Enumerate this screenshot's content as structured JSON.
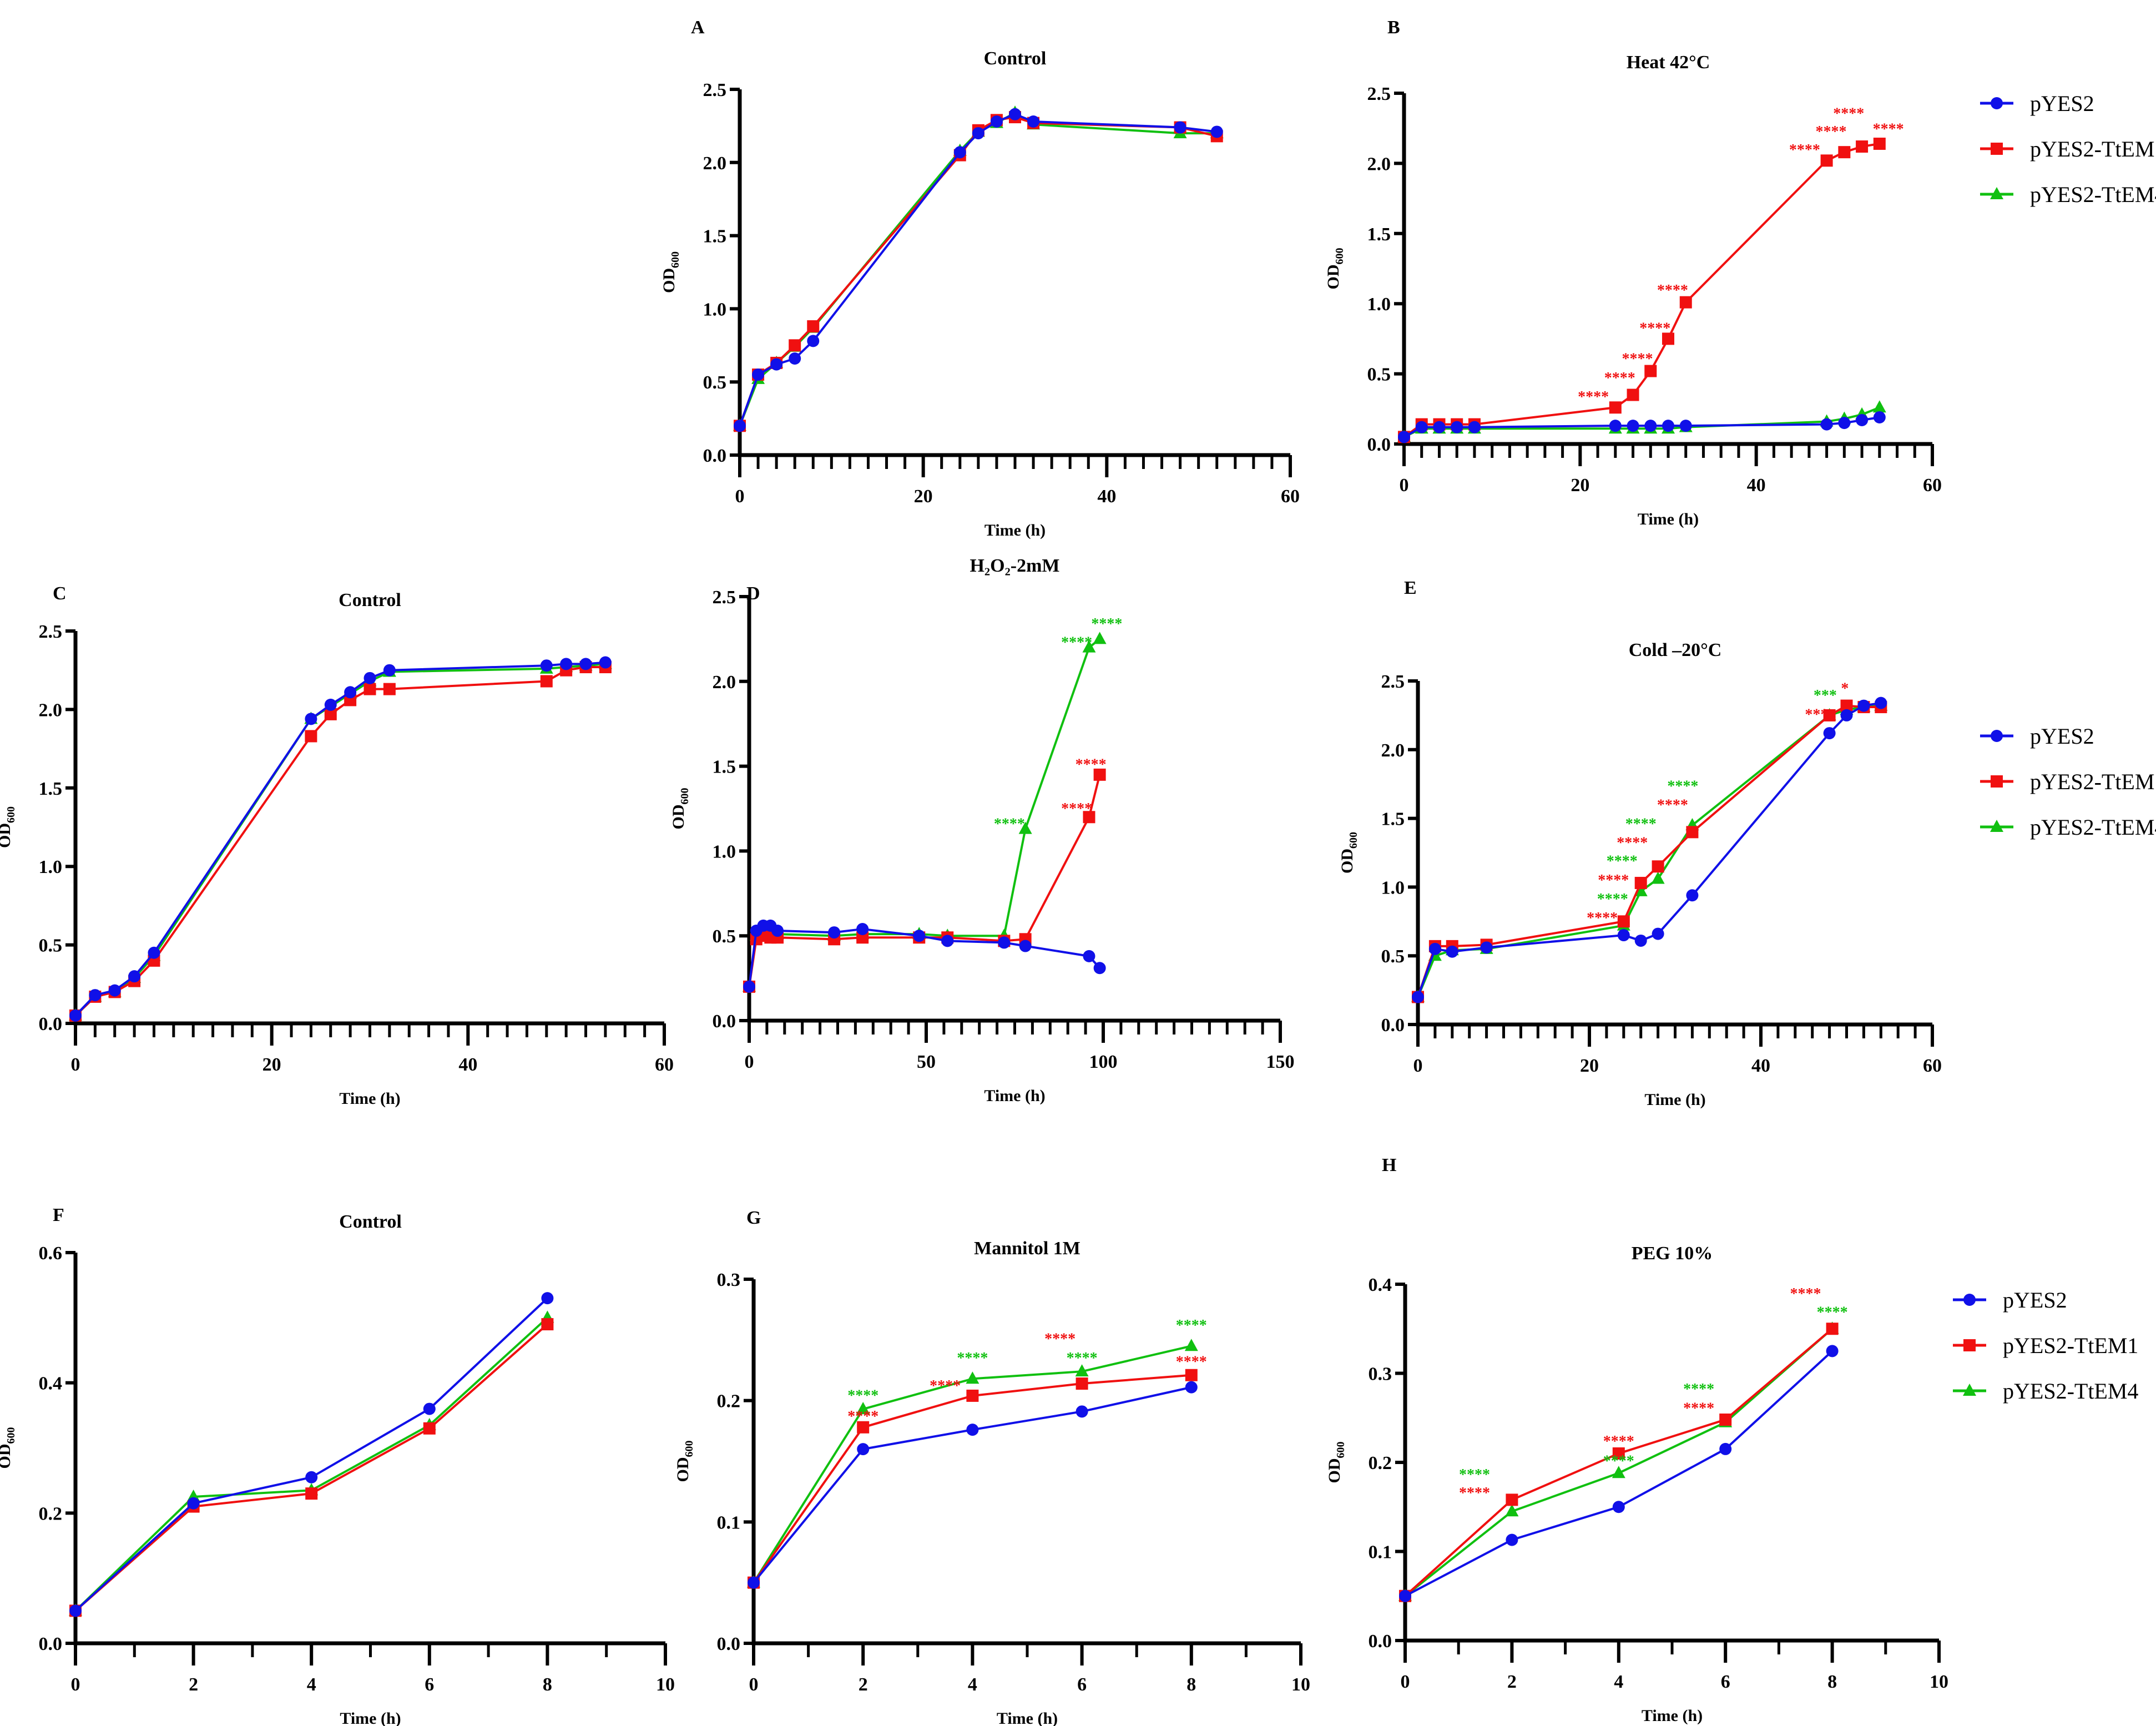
{
  "legend": [
    "pYES2",
    "pYES2-TtEM1",
    "pYES2-TtEM4"
  ],
  "colors": {
    "pYES2": "#1010e8",
    "pYES2-TtEM1": "#f01010",
    "pYES2-TtEM4": "#10c010"
  },
  "chart_data": [
    {
      "panel": "A",
      "type": "line",
      "title": "Control",
      "xlabel": "Time (h)",
      "ylabel": "OD600",
      "xlim": [
        0,
        60
      ],
      "xticks": [
        0,
        20,
        40,
        60
      ],
      "ylim": [
        0,
        2.5
      ],
      "yticks": [
        0,
        0.5,
        1,
        1.5,
        2,
        2.5
      ],
      "x": [
        0,
        2,
        4,
        6,
        8,
        24,
        26,
        28,
        30,
        32,
        48,
        52
      ],
      "series": [
        {
          "name": "pYES2",
          "values": [
            0.2,
            0.55,
            0.62,
            0.66,
            0.78,
            2.07,
            2.2,
            2.28,
            2.33,
            2.28,
            2.24,
            2.21
          ]
        },
        {
          "name": "pYES2-TtEM1",
          "values": [
            0.2,
            0.55,
            0.63,
            0.75,
            0.88,
            2.05,
            2.22,
            2.29,
            2.31,
            2.27,
            2.24,
            2.18
          ]
        },
        {
          "name": "pYES2-TtEM4",
          "values": [
            0.2,
            0.52,
            0.63,
            0.74,
            0.87,
            2.08,
            2.21,
            2.27,
            2.34,
            2.26,
            2.2,
            2.2
          ]
        }
      ],
      "annotations": []
    },
    {
      "panel": "B",
      "type": "line",
      "title": "Heat 42°C",
      "xlabel": "Time (h)",
      "ylabel": "OD600",
      "xlim": [
        0,
        60
      ],
      "xticks": [
        0,
        20,
        40,
        60
      ],
      "ylim": [
        0,
        2.5
      ],
      "yticks": [
        0,
        0.5,
        1,
        1.5,
        2,
        2.5
      ],
      "legend": "right",
      "x": [
        0,
        2,
        4,
        6,
        8,
        24,
        26,
        28,
        30,
        32,
        48,
        50,
        52,
        54
      ],
      "series": [
        {
          "name": "pYES2",
          "values": [
            0.05,
            0.12,
            0.12,
            0.12,
            0.12,
            0.13,
            0.13,
            0.13,
            0.13,
            0.13,
            0.14,
            0.15,
            0.17,
            0.19
          ]
        },
        {
          "name": "pYES2-TtEM1",
          "values": [
            0.05,
            0.14,
            0.14,
            0.14,
            0.14,
            0.26,
            0.35,
            0.52,
            0.75,
            1.01,
            2.02,
            2.08,
            2.12,
            2.14
          ]
        },
        {
          "name": "pYES2-TtEM4",
          "values": [
            0.05,
            0.11,
            0.11,
            0.11,
            0.11,
            0.11,
            0.11,
            0.11,
            0.11,
            0.12,
            0.16,
            0.18,
            0.21,
            0.26
          ]
        }
      ],
      "annotations": [
        {
          "text": "****",
          "series": "pYES2-TtEM1",
          "x": 21.5,
          "y": 0.3
        },
        {
          "text": "****",
          "series": "pYES2-TtEM1",
          "x": 24.5,
          "y": 0.4
        },
        {
          "text": "****",
          "series": "pYES2-TtEM1",
          "x": 26.5,
          "y": 0.56
        },
        {
          "text": "****",
          "series": "pYES2-TtEM1",
          "x": 28.5,
          "y": 0.79
        },
        {
          "text": "****",
          "series": "pYES2-TtEM1",
          "x": 30.5,
          "y": 1.06
        },
        {
          "text": "****",
          "series": "pYES2-TtEM1",
          "x": 45.5,
          "y": 2.06
        },
        {
          "text": "****",
          "series": "pYES2-TtEM1",
          "x": 48.5,
          "y": 2.12
        },
        {
          "text": "****",
          "series": "pYES2-TtEM1",
          "x": 50.5,
          "y": 2.19
        },
        {
          "text": "****",
          "series": "pYES2-TtEM1",
          "x": 55,
          "y": 2.21
        }
      ]
    },
    {
      "panel": "C",
      "type": "line",
      "title": "Control",
      "xlabel": "Time (h)",
      "ylabel": "OD600",
      "xlim": [
        0,
        60
      ],
      "xticks": [
        0,
        20,
        40,
        60
      ],
      "ylim": [
        0,
        2.5
      ],
      "yticks": [
        0,
        0.5,
        1,
        1.5,
        2,
        2.5
      ],
      "x": [
        0,
        2,
        4,
        6,
        8,
        24,
        26,
        28,
        30,
        32,
        48,
        50,
        52,
        54
      ],
      "series": [
        {
          "name": "pYES2",
          "values": [
            0.05,
            0.18,
            0.21,
            0.3,
            0.45,
            1.94,
            2.03,
            2.11,
            2.2,
            2.25,
            2.28,
            2.29,
            2.29,
            2.3
          ]
        },
        {
          "name": "pYES2-TtEM1",
          "values": [
            0.05,
            0.17,
            0.2,
            0.27,
            0.4,
            1.83,
            1.97,
            2.06,
            2.13,
            2.13,
            2.18,
            2.25,
            2.27,
            2.27
          ]
        },
        {
          "name": "pYES2-TtEM4",
          "values": [
            0.05,
            0.17,
            0.2,
            0.29,
            0.43,
            1.94,
            2.02,
            2.1,
            2.18,
            2.24,
            2.26,
            2.27,
            2.28,
            2.29
          ]
        }
      ],
      "annotations": []
    },
    {
      "panel": "D",
      "type": "line",
      "title": "H₂O₂-2mM",
      "xlabel": "Time (h)",
      "ylabel": "OD600",
      "xlim": [
        0,
        150
      ],
      "xticks": [
        0,
        50,
        100,
        150
      ],
      "ylim": [
        0,
        2.5
      ],
      "yticks": [
        0,
        0.5,
        1,
        1.5,
        2,
        2.5
      ],
      "x": [
        0,
        2,
        4,
        6,
        8,
        24,
        32,
        48,
        56,
        72,
        78,
        96,
        99
      ],
      "series": [
        {
          "name": "pYES2",
          "values": [
            0.2,
            0.53,
            0.56,
            0.56,
            0.53,
            0.52,
            0.54,
            0.5,
            0.47,
            0.46,
            0.44,
            0.38,
            0.31
          ]
        },
        {
          "name": "pYES2-TtEM1",
          "values": [
            0.2,
            0.48,
            0.5,
            0.49,
            0.49,
            0.48,
            0.49,
            0.49,
            0.49,
            0.47,
            0.48,
            1.2,
            1.45
          ]
        },
        {
          "name": "pYES2-TtEM4",
          "values": [
            0.2,
            0.5,
            0.51,
            0.51,
            0.51,
            0.5,
            0.51,
            0.51,
            0.5,
            0.5,
            1.13,
            2.2,
            2.25
          ]
        }
      ],
      "annotations": [
        {
          "text": "****",
          "series": "pYES2-TtEM4",
          "x": 73.5,
          "y": 1.13
        },
        {
          "text": "****",
          "series": "pYES2-TtEM4",
          "x": 92.5,
          "y": 2.2
        },
        {
          "text": "****",
          "series": "pYES2-TtEM4",
          "x": 101,
          "y": 2.29
        },
        {
          "text": "****",
          "series": "pYES2-TtEM1",
          "x": 92.5,
          "y": 1.22
        },
        {
          "text": "****",
          "series": "pYES2-TtEM1",
          "x": 96.5,
          "y": 1.48
        }
      ]
    },
    {
      "panel": "E",
      "type": "line",
      "title": "Cold –20°C",
      "xlabel": "Time (h)",
      "ylabel": "OD600",
      "xlim": [
        0,
        60
      ],
      "xticks": [
        0,
        20,
        40,
        60
      ],
      "ylim": [
        0,
        2.5
      ],
      "yticks": [
        0,
        0.5,
        1,
        1.5,
        2,
        2.5
      ],
      "legend": "right",
      "x": [
        0,
        2,
        4,
        8,
        24,
        26,
        28,
        32,
        48,
        50,
        52,
        54
      ],
      "series": [
        {
          "name": "pYES2",
          "values": [
            0.2,
            0.55,
            0.53,
            0.56,
            0.65,
            0.61,
            0.66,
            0.94,
            2.12,
            2.25,
            2.32,
            2.34
          ]
        },
        {
          "name": "pYES2-TtEM1",
          "values": [
            0.2,
            0.57,
            0.57,
            0.58,
            0.75,
            1.03,
            1.15,
            1.4,
            2.25,
            2.32,
            2.31,
            2.31
          ]
        },
        {
          "name": "pYES2-TtEM4",
          "values": [
            0.2,
            0.5,
            0.54,
            0.55,
            0.72,
            0.97,
            1.06,
            1.45,
            2.25,
            2.29,
            2.31,
            2.32
          ]
        }
      ],
      "annotations": [
        {
          "text": "****",
          "series": "pYES2-TtEM1",
          "x": 21.5,
          "y": 0.74
        },
        {
          "text": "****",
          "series": "pYES2-TtEM4",
          "x": 22.7,
          "y": 0.84
        },
        {
          "text": "****",
          "series": "pYES2-TtEM1",
          "x": 22.8,
          "y": 0.99
        },
        {
          "text": "****",
          "series": "pYES2-TtEM4",
          "x": 23.8,
          "y": 1.08
        },
        {
          "text": "****",
          "series": "pYES2-TtEM1",
          "x": 25,
          "y": 1.14
        },
        {
          "text": "****",
          "series": "pYES2-TtEM4",
          "x": 26,
          "y": 1.23
        },
        {
          "text": "****",
          "series": "pYES2-TtEM1",
          "x": 29.7,
          "y": 1.38
        },
        {
          "text": "****",
          "series": "pYES2-TtEM4",
          "x": 30.9,
          "y": 1.48
        },
        {
          "text": "***",
          "series": "pYES2-TtEM1",
          "x": 46.5,
          "y": 2.22
        },
        {
          "text": "***",
          "series": "pYES2-TtEM4",
          "x": 47.5,
          "y": 2.31
        },
        {
          "text": "*",
          "series": "pYES2-TtEM1",
          "x": 49.8,
          "y": 2.41
        }
      ]
    },
    {
      "panel": "F",
      "type": "line",
      "title": "Control",
      "xlabel": "Time (h)",
      "ylabel": "OD600",
      "xlim": [
        0,
        10
      ],
      "xticks": [
        0,
        2,
        4,
        6,
        8,
        10
      ],
      "ylim": [
        0,
        0.6
      ],
      "yticks": [
        0,
        0.2,
        0.4,
        0.6
      ],
      "x": [
        0,
        2,
        4,
        6,
        8
      ],
      "series": [
        {
          "name": "pYES2",
          "values": [
            0.05,
            0.215,
            0.255,
            0.36,
            0.53
          ]
        },
        {
          "name": "pYES2-TtEM1",
          "values": [
            0.05,
            0.21,
            0.23,
            0.33,
            0.49
          ]
        },
        {
          "name": "pYES2-TtEM4",
          "values": [
            0.05,
            0.225,
            0.235,
            0.335,
            0.5
          ]
        }
      ],
      "annotations": []
    },
    {
      "panel": "G",
      "type": "line",
      "title": "Mannitol 1M",
      "xlabel": "Time (h)",
      "ylabel": "OD600",
      "xlim": [
        0,
        10
      ],
      "xticks": [
        0,
        2,
        4,
        6,
        8,
        10
      ],
      "ylim": [
        0,
        0.3
      ],
      "yticks": [
        0,
        0.1,
        0.2,
        0.3
      ],
      "x": [
        0,
        2,
        4,
        6,
        8
      ],
      "series": [
        {
          "name": "pYES2",
          "values": [
            0.05,
            0.16,
            0.176,
            0.191,
            0.211
          ]
        },
        {
          "name": "pYES2-TtEM1",
          "values": [
            0.05,
            0.178,
            0.204,
            0.214,
            0.221
          ]
        },
        {
          "name": "pYES2-TtEM4",
          "values": [
            0.05,
            0.193,
            0.218,
            0.224,
            0.245
          ]
        }
      ],
      "annotations": [
        {
          "text": "****",
          "series": "pYES2-TtEM4",
          "x": 2,
          "y": 0.2
        },
        {
          "text": "****",
          "series": "pYES2-TtEM1",
          "x": 2,
          "y": 0.183
        },
        {
          "text": "****",
          "series": "pYES2-TtEM4",
          "x": 4,
          "y": 0.231
        },
        {
          "text": "****",
          "series": "pYES2-TtEM1",
          "x": 3.5,
          "y": 0.208
        },
        {
          "text": "****",
          "series": "pYES2-TtEM4",
          "x": 6,
          "y": 0.231
        },
        {
          "text": "****",
          "series": "pYES2-TtEM1",
          "x": 5.6,
          "y": 0.218
        },
        {
          "text": "****",
          "series": "pYES2-TtEM4",
          "x": 8,
          "y": 0.258
        },
        {
          "text": "****",
          "series": "pYES2-TtEM1",
          "x": 8,
          "y": 0.228
        }
      ]
    },
    {
      "panel": "H",
      "type": "line",
      "title": "PEG 10%",
      "xlabel": "Time (h)",
      "ylabel": "OD600",
      "xlim": [
        0,
        10
      ],
      "xticks": [
        0,
        2,
        4,
        6,
        8,
        10
      ],
      "ylim": [
        0,
        0.4
      ],
      "yticks": [
        0,
        0.1,
        0.2,
        0.3,
        0.4
      ],
      "legend": "right",
      "x": [
        0,
        2,
        4,
        6,
        8
      ],
      "series": [
        {
          "name": "pYES2",
          "values": [
            0.05,
            0.113,
            0.15,
            0.215,
            0.325
          ]
        },
        {
          "name": "pYES2-TtEM1",
          "values": [
            0.05,
            0.158,
            0.21,
            0.248,
            0.35
          ]
        },
        {
          "name": "pYES2-TtEM4",
          "values": [
            0.05,
            0.145,
            0.188,
            0.245,
            0.35
          ]
        }
      ],
      "annotations": [
        {
          "text": "****",
          "series": "pYES2-TtEM1",
          "x": 1.3,
          "y": 0.16
        },
        {
          "text": "****",
          "series": "pYES2-TtEM4",
          "x": 1.3,
          "y": 0.147
        },
        {
          "text": "****",
          "series": "pYES2-TtEM1",
          "x": 4,
          "y": 0.218
        },
        {
          "text": "****",
          "series": "pYES2-TtEM4",
          "x": 4,
          "y": 0.196
        },
        {
          "text": "****",
          "series": "pYES2-TtEM1",
          "x": 5.5,
          "y": 0.255
        },
        {
          "text": "****",
          "series": "pYES2-TtEM4",
          "x": 5.5,
          "y": 0.245
        },
        {
          "text": "****",
          "series": "pYES2-TtEM4",
          "x": 8,
          "y": 0.363
        },
        {
          "text": "****",
          "series": "pYES2-TtEM1",
          "x": 7.5,
          "y": 0.352
        }
      ]
    }
  ]
}
